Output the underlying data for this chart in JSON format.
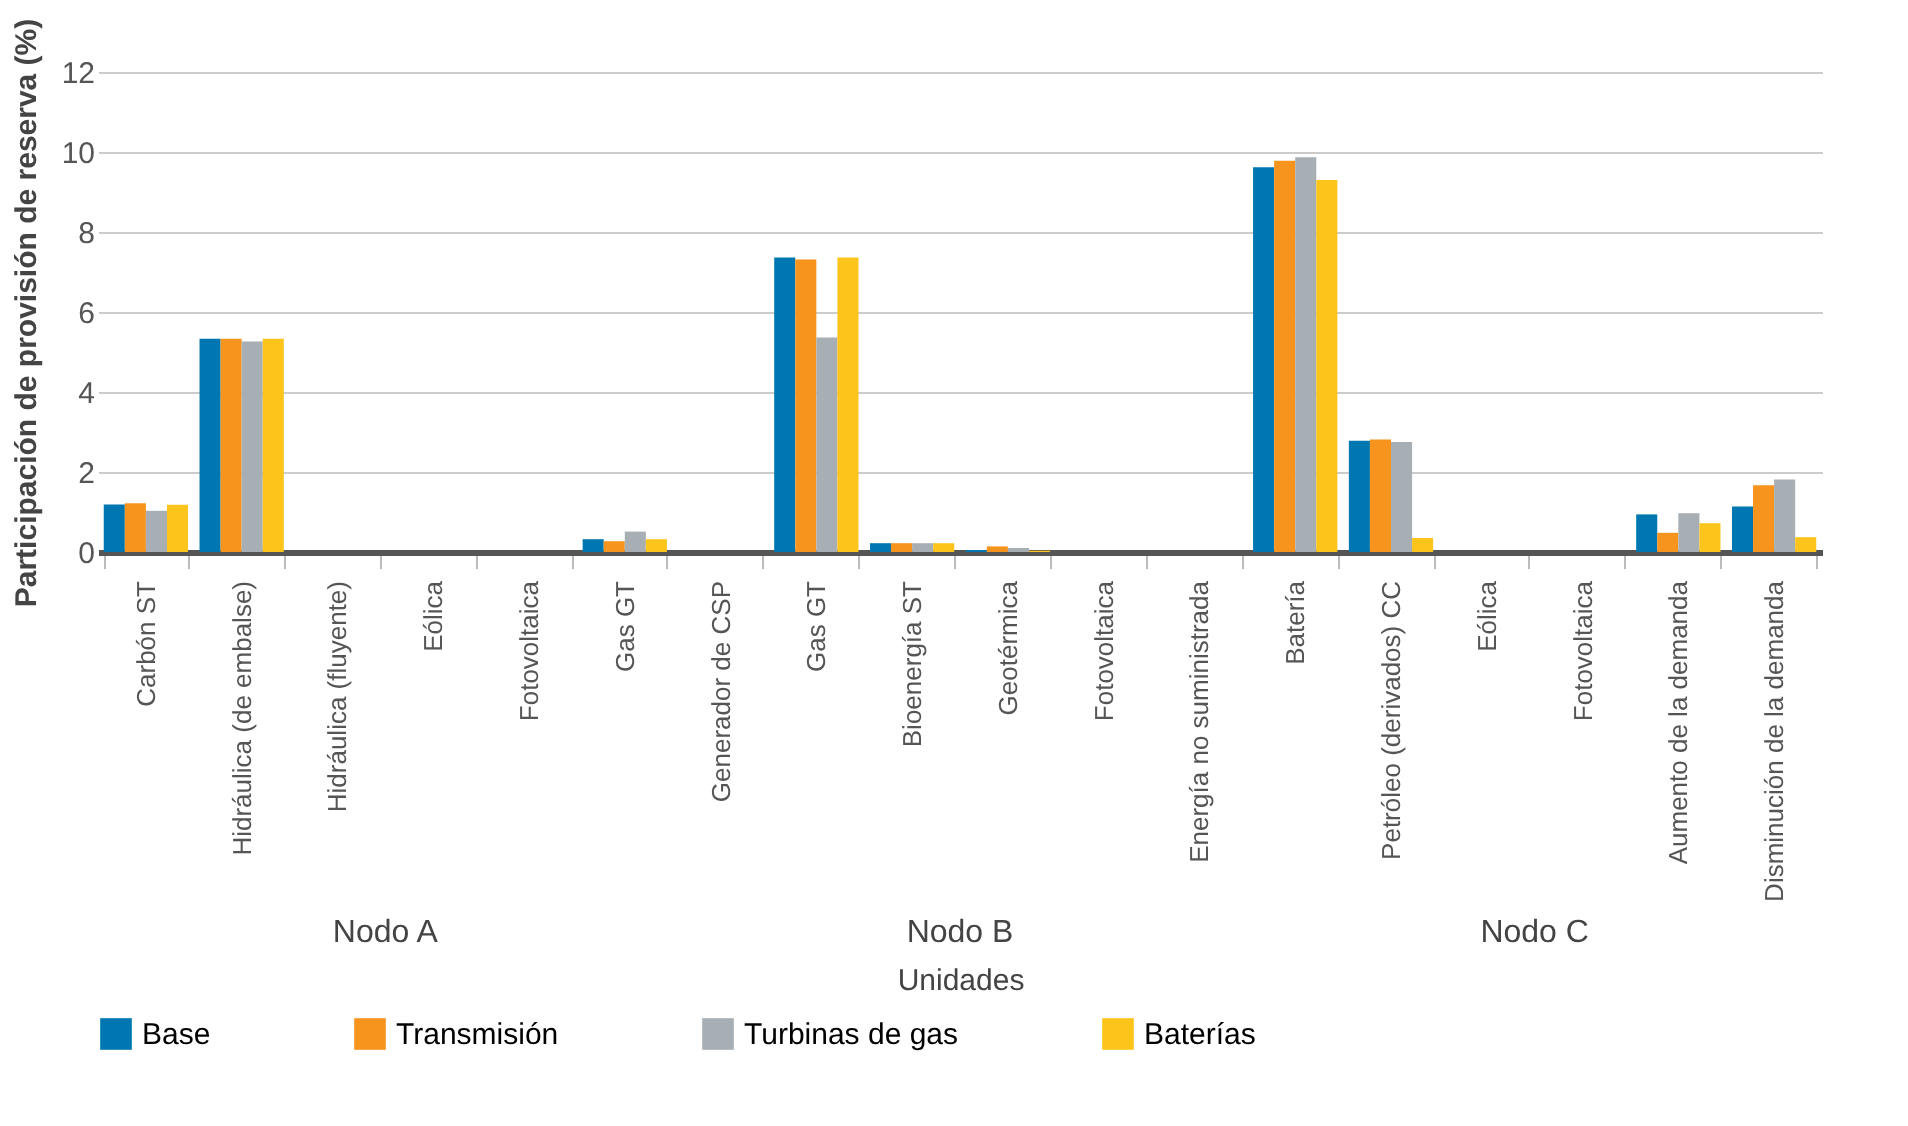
{
  "chart_data": {
    "type": "bar",
    "ylabel": "Participación de provisión de reserva (%)",
    "xlabel": "Unidades",
    "categories": [
      "Carbón ST",
      "Hidráulica (de embalse)",
      "Hidráulica (fluyente)",
      "Eólica",
      "Fotovoltaica",
      "Gas GT",
      "Generador de CSP",
      "Gas GT",
      "Bioenergía ST",
      "Geotérmica",
      "Fotovoltaica",
      "Energía no suministrada",
      "Batería",
      "Petróleo (derivados) CC",
      "Eólica",
      "Fotovoltaica",
      "Aumento de la demanda",
      "Disminución de la demanda"
    ],
    "series": [
      {
        "name": "Base",
        "color": "#0077b0",
        "values": [
          1.19,
          5.33,
          0,
          0,
          0,
          0.32,
          0,
          7.36,
          0.22,
          0.05,
          0,
          0,
          9.62,
          2.78,
          0,
          0,
          0.94,
          1.14
        ]
      },
      {
        "name": "Transmisión",
        "color": "#f7941d",
        "values": [
          1.22,
          5.33,
          0,
          0,
          0,
          0.27,
          0,
          7.31,
          0.22,
          0.14,
          0,
          0,
          9.78,
          2.81,
          0,
          0,
          0.48,
          1.67
        ]
      },
      {
        "name": "Turbinas de gas",
        "color": "#a7aeb4",
        "values": [
          1.03,
          5.26,
          0,
          0,
          0,
          0.51,
          0,
          5.36,
          0.22,
          0.1,
          0,
          0,
          9.87,
          2.75,
          0,
          0,
          0.97,
          1.81
        ]
      },
      {
        "name": "Baterías",
        "color": "#fdc41c",
        "values": [
          1.18,
          5.33,
          0,
          0,
          0,
          0.32,
          0,
          7.36,
          0.22,
          0.03,
          0,
          0,
          9.3,
          0.35,
          0,
          0,
          0.72,
          0.37
        ]
      }
    ],
    "annotations": [
      "Nodo A",
      "Nodo B",
      "Nodo C"
    ],
    "ylim": [
      0,
      12
    ],
    "yticks": [
      0,
      2,
      4,
      6,
      8,
      10,
      12
    ],
    "grid": "y",
    "legend": "bottom"
  }
}
